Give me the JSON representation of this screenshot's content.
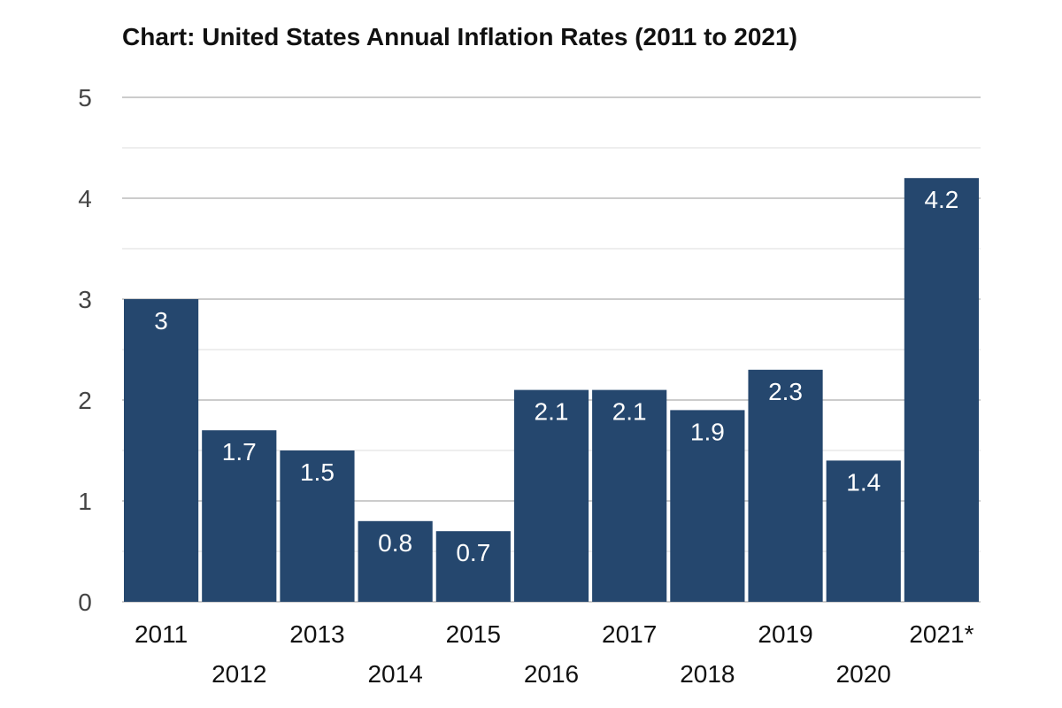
{
  "chart_data": {
    "type": "bar",
    "title": "Chart: United States Annual Inflation Rates (2011 to 2021)",
    "categories": [
      "2011",
      "2012",
      "2013",
      "2014",
      "2015",
      "2016",
      "2017",
      "2018",
      "2019",
      "2020",
      "2021*"
    ],
    "values": [
      3,
      1.7,
      1.5,
      0.8,
      0.7,
      2.1,
      2.1,
      1.9,
      2.3,
      1.4,
      4.2
    ],
    "value_labels": [
      "3",
      "1.7",
      "1.5",
      "0.8",
      "0.7",
      "2.1",
      "2.1",
      "1.9",
      "2.3",
      "1.4",
      "4.2"
    ],
    "y_ticks": [
      0,
      1,
      2,
      3,
      4,
      5
    ],
    "ylim": [
      0,
      5
    ],
    "xlabel": "",
    "ylabel": "",
    "grid": true,
    "legend": "none",
    "bar_color": "#25476e",
    "grid_color": "#cccccc",
    "minor_grid_color": "#e8e8e8"
  }
}
